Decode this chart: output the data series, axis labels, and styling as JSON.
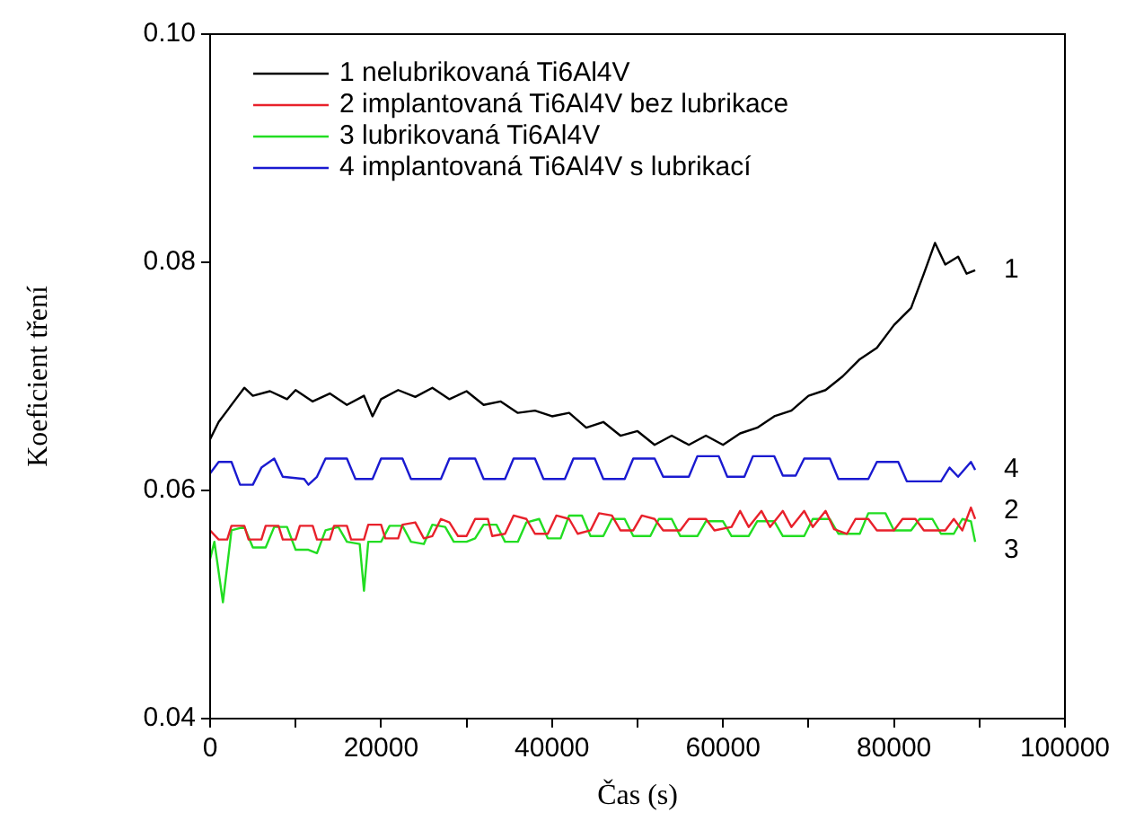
{
  "chart_data": {
    "type": "line",
    "xlabel": "Čas (s)",
    "ylabel": "Koeficient tření",
    "xlim": [
      0,
      100000
    ],
    "ylim": [
      0.04,
      0.1
    ],
    "xticks": [
      0,
      {
        "value": 10000,
        "label": null
      },
      20000,
      {
        "value": 30000,
        "label": null
      },
      40000,
      {
        "value": 50000,
        "label": null
      },
      60000,
      {
        "value": 70000,
        "label": null
      },
      80000,
      {
        "value": 90000,
        "label": null
      },
      100000
    ],
    "yticks": [
      0.04,
      0.06,
      0.08,
      {
        "value": 0.1,
        "label": "0.10"
      }
    ],
    "grid": false,
    "legend": "top left",
    "annotations": [
      "1",
      "2",
      "3",
      "4"
    ],
    "series": [
      {
        "name": "1 nelubrikovaná Ti6Al4V",
        "color": "#000000",
        "x": [
          0,
          1000,
          2000,
          3000,
          4000,
          5000,
          7000,
          9000,
          10000,
          12000,
          14000,
          16000,
          18000,
          19000,
          20000,
          22000,
          24000,
          26000,
          28000,
          30000,
          32000,
          34000,
          36000,
          38000,
          40000,
          42000,
          44000,
          46000,
          48000,
          50000,
          52000,
          54000,
          56000,
          58000,
          60000,
          62000,
          64000,
          66000,
          68000,
          70000,
          72000,
          74000,
          76000,
          78000,
          80000,
          82000,
          83500,
          84800,
          86000,
          87500,
          88500,
          89500
        ],
        "values": [
          0.0645,
          0.066,
          0.067,
          0.068,
          0.069,
          0.0683,
          0.0687,
          0.068,
          0.0688,
          0.0678,
          0.0685,
          0.0675,
          0.0683,
          0.0665,
          0.068,
          0.0688,
          0.0682,
          0.069,
          0.068,
          0.0687,
          0.0675,
          0.0678,
          0.0668,
          0.067,
          0.0665,
          0.0668,
          0.0655,
          0.066,
          0.0648,
          0.0652,
          0.064,
          0.0648,
          0.064,
          0.0648,
          0.064,
          0.065,
          0.0655,
          0.0665,
          0.067,
          0.0683,
          0.0688,
          0.07,
          0.0715,
          0.0725,
          0.0745,
          0.076,
          0.079,
          0.0817,
          0.0798,
          0.0805,
          0.079,
          0.0793
        ]
      },
      {
        "name": "2 implantovaná Ti6Al4V bez lubrikace",
        "color": "#e8212b",
        "x": [
          0,
          1000,
          2000,
          2500,
          4000,
          4500,
          6000,
          6500,
          8000,
          8500,
          10000,
          10500,
          12000,
          12500,
          14000,
          14500,
          16000,
          16500,
          18000,
          18500,
          20000,
          20500,
          22000,
          22500,
          24000,
          25000,
          26000,
          27000,
          28000,
          29000,
          30000,
          31000,
          32500,
          33000,
          34500,
          35500,
          37000,
          38000,
          39500,
          40500,
          42000,
          43000,
          44500,
          45500,
          47000,
          48000,
          49500,
          50500,
          52000,
          53000,
          55000,
          56000,
          58000,
          59000,
          61000,
          62000,
          63000,
          64500,
          65500,
          67000,
          68000,
          69500,
          70500,
          72000,
          73000,
          74500,
          75500,
          77000,
          78000,
          80000,
          81000,
          82500,
          83500,
          86000,
          87000,
          88000,
          89000,
          89500
        ],
        "values": [
          0.0565,
          0.0557,
          0.0557,
          0.0569,
          0.0569,
          0.0557,
          0.0557,
          0.0569,
          0.0569,
          0.0557,
          0.0557,
          0.0569,
          0.0569,
          0.0557,
          0.0557,
          0.0569,
          0.0569,
          0.0557,
          0.0557,
          0.057,
          0.057,
          0.0558,
          0.0558,
          0.057,
          0.0572,
          0.0558,
          0.056,
          0.0575,
          0.0572,
          0.056,
          0.056,
          0.0575,
          0.0575,
          0.056,
          0.0562,
          0.0578,
          0.0575,
          0.0562,
          0.0562,
          0.0578,
          0.0575,
          0.0562,
          0.0565,
          0.058,
          0.0578,
          0.0565,
          0.0565,
          0.0578,
          0.0575,
          0.0565,
          0.0565,
          0.0575,
          0.0575,
          0.0565,
          0.0568,
          0.0582,
          0.0568,
          0.0582,
          0.0568,
          0.0582,
          0.0568,
          0.0582,
          0.0568,
          0.0582,
          0.0566,
          0.0562,
          0.0575,
          0.0575,
          0.0565,
          0.0565,
          0.0575,
          0.0575,
          0.0565,
          0.0565,
          0.0575,
          0.0565,
          0.0585,
          0.0575
        ]
      },
      {
        "name": "3 lubrikovaná Ti6Al4V",
        "color": "#22dd22",
        "x": [
          0,
          500,
          1500,
          2500,
          4000,
          5000,
          6500,
          7500,
          9000,
          10000,
          11500,
          12500,
          13500,
          15000,
          16000,
          17500,
          18000,
          18500,
          20000,
          21000,
          22500,
          23500,
          25000,
          26000,
          27500,
          28500,
          30000,
          31000,
          32000,
          33500,
          34500,
          36000,
          37000,
          38500,
          39500,
          41000,
          42000,
          43500,
          44500,
          46000,
          47000,
          48500,
          49500,
          51500,
          52500,
          54000,
          55000,
          57000,
          58000,
          60000,
          61000,
          63000,
          64000,
          66000,
          67000,
          69500,
          70500,
          72500,
          73500,
          76000,
          77000,
          79000,
          80000,
          82000,
          83000,
          84500,
          85500,
          87000,
          88000,
          89000,
          89500
        ],
        "values": [
          0.054,
          0.0555,
          0.0502,
          0.0565,
          0.0568,
          0.055,
          0.055,
          0.0568,
          0.0568,
          0.0548,
          0.0548,
          0.0545,
          0.0565,
          0.0568,
          0.0555,
          0.0553,
          0.0512,
          0.0555,
          0.0555,
          0.0569,
          0.0569,
          0.0555,
          0.0553,
          0.057,
          0.0568,
          0.0555,
          0.0555,
          0.0558,
          0.057,
          0.057,
          0.0555,
          0.0555,
          0.0572,
          0.0575,
          0.0558,
          0.0558,
          0.0578,
          0.0578,
          0.056,
          0.056,
          0.0575,
          0.0575,
          0.056,
          0.056,
          0.0575,
          0.0575,
          0.056,
          0.056,
          0.0573,
          0.0573,
          0.056,
          0.056,
          0.0573,
          0.0573,
          0.056,
          0.056,
          0.0575,
          0.0575,
          0.0562,
          0.0562,
          0.058,
          0.058,
          0.0565,
          0.0565,
          0.0575,
          0.0575,
          0.0562,
          0.0562,
          0.0575,
          0.0573,
          0.0555
        ]
      },
      {
        "name": "4 implantovaná Ti6Al4V s lubrikací",
        "color": "#1a1ad0",
        "x": [
          0,
          1000,
          2500,
          3500,
          5000,
          6000,
          7500,
          8500,
          11000,
          11500,
          12500,
          13500,
          16000,
          17000,
          19000,
          20000,
          22500,
          23500,
          27000,
          28000,
          31000,
          32000,
          34500,
          35500,
          38000,
          39000,
          41500,
          42500,
          45000,
          46000,
          48500,
          49500,
          52000,
          53000,
          56000,
          57000,
          59500,
          60500,
          62500,
          63500,
          66000,
          67000,
          68500,
          69500,
          72500,
          73500,
          77000,
          78000,
          80500,
          81500,
          85500,
          86500,
          87500,
          89000,
          89500
        ],
        "values": [
          0.0615,
          0.0625,
          0.0625,
          0.0605,
          0.0605,
          0.062,
          0.0628,
          0.0612,
          0.061,
          0.0605,
          0.0612,
          0.0628,
          0.0628,
          0.061,
          0.061,
          0.0628,
          0.0628,
          0.061,
          0.061,
          0.0628,
          0.0628,
          0.061,
          0.061,
          0.0628,
          0.0628,
          0.061,
          0.061,
          0.0628,
          0.0628,
          0.061,
          0.061,
          0.0628,
          0.0628,
          0.0612,
          0.0612,
          0.063,
          0.063,
          0.0612,
          0.0612,
          0.063,
          0.063,
          0.0613,
          0.0613,
          0.0628,
          0.0628,
          0.061,
          0.061,
          0.0625,
          0.0625,
          0.0608,
          0.0608,
          0.062,
          0.0612,
          0.0625,
          0.0618
        ]
      }
    ]
  }
}
